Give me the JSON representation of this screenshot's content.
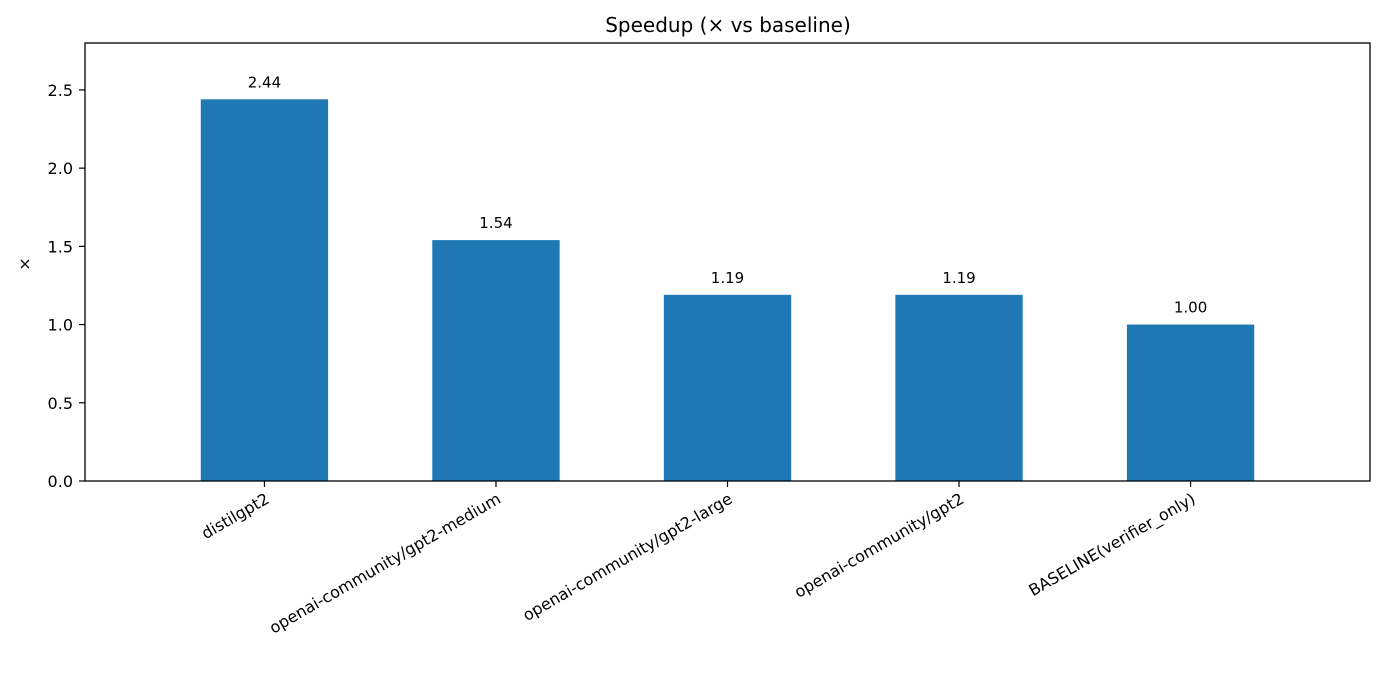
{
  "chart_data": {
    "type": "bar",
    "title": "Speedup (× vs baseline)",
    "xlabel": "",
    "ylabel": "×",
    "categories": [
      "distilgpt2",
      "openai-community/gpt2-medium",
      "openai-community/gpt2-large",
      "openai-community/gpt2",
      "BASELINE(verifier_only)"
    ],
    "values": [
      2.44,
      1.54,
      1.19,
      1.19,
      1.0
    ],
    "value_labels": [
      "2.44",
      "1.54",
      "1.19",
      "1.19",
      "1.00"
    ],
    "ylim": [
      0,
      2.8
    ],
    "yticks": [
      0.0,
      0.5,
      1.0,
      1.5,
      2.0,
      2.5
    ],
    "ytick_labels": [
      "0.0",
      "0.5",
      "1.0",
      "1.5",
      "2.0",
      "2.5"
    ],
    "grid": false,
    "bar_color": "#1f77b4"
  }
}
